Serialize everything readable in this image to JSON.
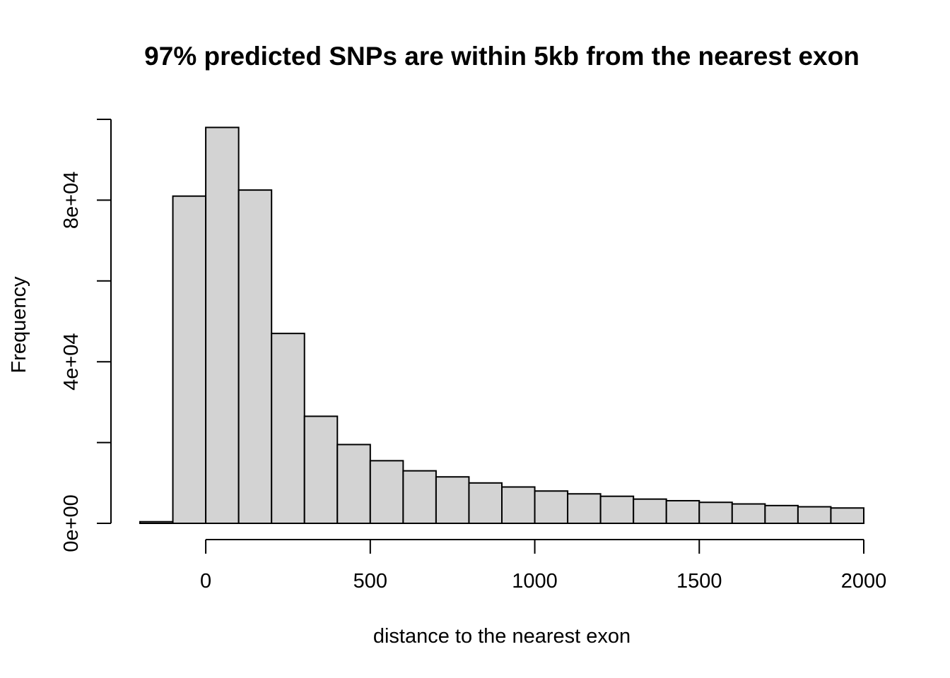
{
  "chart_data": {
    "type": "bar",
    "title": "97% predicted SNPs are within 5kb from the nearest exon",
    "xlabel": "distance to the nearest exon",
    "ylabel": "Frequency",
    "bin_edges": [
      -200,
      -100,
      0,
      100,
      200,
      300,
      400,
      500,
      600,
      700,
      800,
      900,
      1000,
      1100,
      1200,
      1300,
      1400,
      1500,
      1600,
      1700,
      1800,
      1900,
      2000
    ],
    "values": [
      400,
      81000,
      98000,
      82500,
      47000,
      26500,
      19500,
      15500,
      13000,
      11500,
      10000,
      9000,
      8000,
      7300,
      6700,
      6000,
      5600,
      5200,
      4800,
      4400,
      4100,
      3800
    ],
    "xlim": [
      -200,
      2000
    ],
    "ylim": [
      0,
      100000
    ],
    "x_ticks": [
      0,
      500,
      1000,
      1500,
      2000
    ],
    "x_tick_labels": [
      "0",
      "500",
      "1000",
      "1500",
      "2000"
    ],
    "y_ticks": [
      0,
      20000,
      40000,
      60000,
      80000,
      100000
    ],
    "y_tick_labels": [
      "0e+00",
      "",
      "4e+04",
      "",
      "8e+04",
      ""
    ],
    "grid": false,
    "bar_color": "#d3d3d3",
    "edge_color": "#000000"
  }
}
